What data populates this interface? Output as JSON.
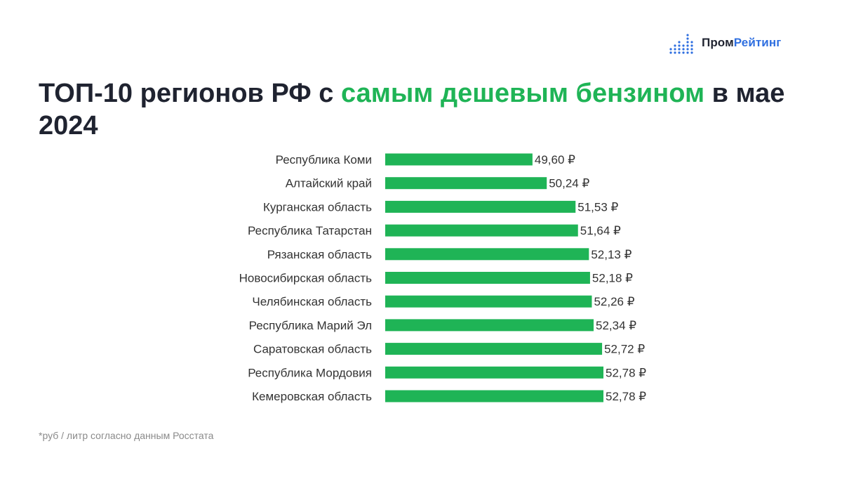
{
  "brand": {
    "part1": "Пром",
    "part2": "Рейтинг"
  },
  "title": {
    "before": "ТОП-10 регионов РФ с ",
    "highlight": "самым дешевым бензином",
    "after": " в мае 2024"
  },
  "footnote": "*руб / литр согласно данным Росстата",
  "colors": {
    "bar": "#1fb456",
    "highlight": "#1fb456",
    "brand_blue": "#2f6fe0"
  },
  "chart_data": {
    "type": "bar",
    "orientation": "horizontal",
    "categories": [
      "Республика Коми",
      "Алтайский край",
      "Курганская область",
      "Республика Татарстан",
      "Рязанская область",
      "Новосибирская область",
      "Челябинская область",
      "Республика Марий Эл",
      "Саратовская область",
      "Республика Мордовия",
      "Кемеровская область"
    ],
    "values": [
      49.6,
      50.24,
      51.53,
      51.64,
      52.13,
      52.18,
      52.26,
      52.34,
      52.72,
      52.78,
      52.78
    ],
    "value_labels": [
      "49,60 ₽",
      "50,24 ₽",
      "51,53 ₽",
      "51,64 ₽",
      "52,13 ₽",
      "52,18 ₽",
      "52,26 ₽",
      "52,34 ₽",
      "52,72 ₽",
      "52,78 ₽",
      "52,78 ₽"
    ],
    "xlim": [
      43.0,
      52.78
    ],
    "grid": false
  }
}
